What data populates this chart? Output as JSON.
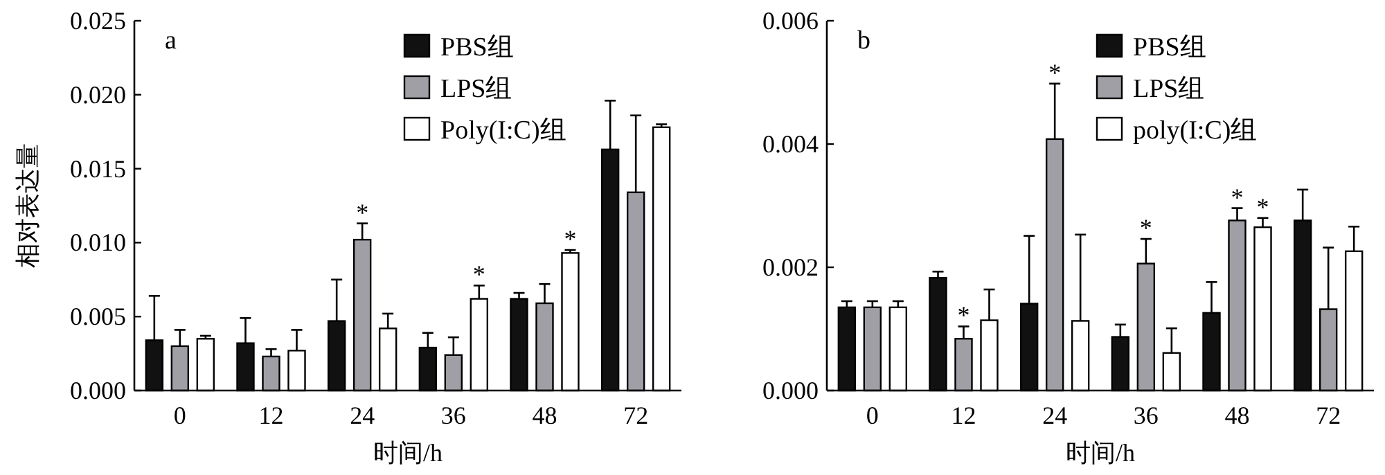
{
  "chart_data": [
    {
      "type": "bar",
      "title": "a",
      "xlabel": "时间/h",
      "ylabel": "相对表达量",
      "categories": [
        "0",
        "12",
        "24",
        "36",
        "48",
        "72"
      ],
      "series": [
        {
          "name": "PBS组",
          "color": "#111111",
          "values": [
            0.0034,
            0.0032,
            0.0047,
            0.0029,
            0.0062,
            0.0163
          ],
          "errors": [
            0.003,
            0.0017,
            0.0028,
            0.001,
            0.0004,
            0.0033
          ]
        },
        {
          "name": "LPS组",
          "color": "#a09fa6",
          "values": [
            0.003,
            0.0023,
            0.0102,
            0.0024,
            0.0059,
            0.0134
          ],
          "errors": [
            0.0011,
            0.0005,
            0.0011,
            0.0012,
            0.0013,
            0.0052
          ],
          "value_labels": [
            null,
            null,
            "*",
            null,
            null,
            null
          ]
        },
        {
          "name": "Poly(I:C)组",
          "color": "#ffffff",
          "values": [
            0.0035,
            0.0027,
            0.0042,
            0.0062,
            0.0093,
            0.0178
          ],
          "errors": [
            0.0002,
            0.0014,
            0.001,
            0.0009,
            0.0002,
            0.0002
          ],
          "value_labels": [
            null,
            null,
            null,
            "*",
            "*",
            null
          ]
        }
      ],
      "ylim": [
        0,
        0.025
      ],
      "yticks": [
        {
          "value": 0,
          "label": "0.000"
        },
        {
          "value": 0.005,
          "label": "0.005"
        },
        {
          "value": 0.01,
          "label": "0.010"
        },
        {
          "value": 0.015,
          "label": "0.015"
        },
        {
          "value": 0.02,
          "label": "0.020"
        },
        {
          "value": 0.025,
          "label": "0.025"
        }
      ],
      "legend": "top right"
    },
    {
      "type": "bar",
      "title": "b",
      "xlabel": "时间/h",
      "categories": [
        "0",
        "12",
        "24",
        "36",
        "48",
        "72"
      ],
      "series": [
        {
          "name": "PBS组",
          "color": "#111111",
          "values": [
            0.00135,
            0.00183,
            0.00141,
            0.00087,
            0.00126,
            0.00276
          ],
          "errors": [
            0.0001,
            0.0001,
            0.0011,
            0.0002,
            0.0005,
            0.0005
          ]
        },
        {
          "name": "LPS组",
          "color": "#a09fa6",
          "values": [
            0.00135,
            0.00084,
            0.00408,
            0.00206,
            0.00276,
            0.00132
          ],
          "errors": [
            0.0001,
            0.0002,
            0.0009,
            0.0004,
            0.0002,
            0.001
          ],
          "value_labels": [
            null,
            "*",
            "*",
            "*",
            "*",
            null
          ]
        },
        {
          "name": "poly(I:C)组",
          "color": "#ffffff",
          "values": [
            0.00135,
            0.00114,
            0.00113,
            0.00061,
            0.00265,
            0.00226
          ],
          "errors": [
            0.0001,
            0.0005,
            0.0014,
            0.0004,
            0.00015,
            0.0004
          ],
          "value_labels": [
            null,
            null,
            null,
            null,
            "*",
            null
          ]
        }
      ],
      "ylim": [
        0,
        0.006
      ],
      "yticks": [
        {
          "value": 0,
          "label": "0.000"
        },
        {
          "value": 0.002,
          "label": "0.002"
        },
        {
          "value": 0.004,
          "label": "0.004"
        },
        {
          "value": 0.006,
          "label": "0.006"
        }
      ],
      "legend": "top right"
    }
  ]
}
